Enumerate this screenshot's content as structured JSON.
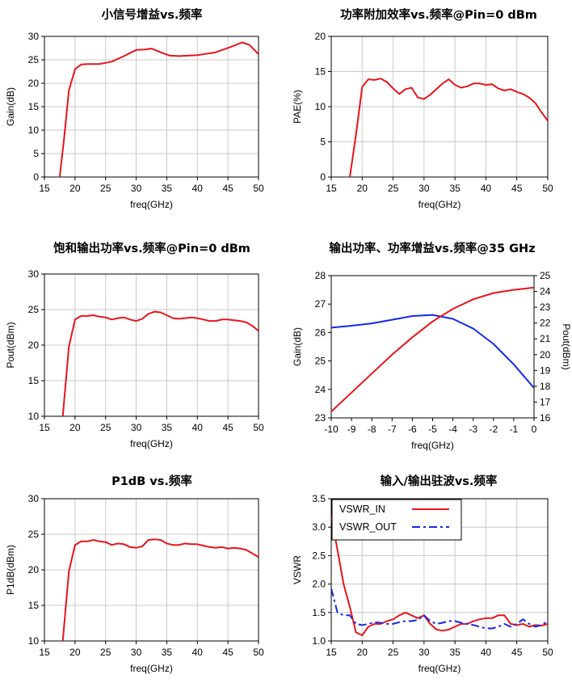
{
  "chart_data": [
    {
      "type": "line",
      "title": "小信号增益vs.频率",
      "xlabel": "freq(GHz)",
      "ylabel": "Gain(dB)",
      "xlim": [
        15,
        50
      ],
      "ylim": [
        0,
        30
      ],
      "xticks": [
        15,
        20,
        25,
        30,
        35,
        40,
        45,
        50
      ],
      "yticks": [
        0,
        5,
        10,
        15,
        20,
        25,
        30
      ],
      "grid": true,
      "series": [
        {
          "color": "#e8141c",
          "x": [
            17.5,
            18.2,
            19,
            20,
            21,
            22,
            24,
            26,
            28,
            30,
            31.5,
            32.5,
            34,
            35.5,
            37,
            40,
            43,
            46,
            47.3,
            48.5,
            50
          ],
          "y": [
            0,
            8,
            18.5,
            23,
            24,
            24.1,
            24.1,
            24.6,
            25.8,
            27.1,
            27.2,
            27.4,
            26.6,
            25.9,
            25.8,
            26,
            26.6,
            28,
            28.7,
            28.2,
            26.2
          ]
        }
      ]
    },
    {
      "type": "line",
      "title": "功率附加效率vs.频率@Pin=0 dBm",
      "xlabel": "freq(GHz)",
      "ylabel": "PAE(%)",
      "xlim": [
        15,
        50
      ],
      "ylim": [
        0,
        20
      ],
      "xticks": [
        15,
        20,
        25,
        30,
        35,
        40,
        45,
        50
      ],
      "yticks": [
        0,
        5,
        10,
        15,
        20
      ],
      "grid": true,
      "series": [
        {
          "color": "#e8141c",
          "x": [
            18,
            19,
            20,
            21,
            22,
            23,
            24,
            25,
            26,
            27,
            28,
            29,
            30,
            31,
            32,
            33,
            34,
            35,
            36,
            37,
            38,
            39,
            40,
            41,
            42,
            43,
            44,
            45,
            46,
            47,
            48,
            49,
            50
          ],
          "y": [
            0,
            6,
            12.8,
            13.9,
            13.8,
            14,
            13.5,
            12.6,
            11.8,
            12.5,
            12.7,
            11.3,
            11.1,
            11.7,
            12.5,
            13.3,
            13.9,
            13.1,
            12.7,
            12.9,
            13.3,
            13.3,
            13.1,
            13.2,
            12.6,
            12.3,
            12.5,
            12.1,
            11.8,
            11.3,
            10.5,
            9.2,
            8
          ]
        }
      ]
    },
    {
      "type": "line",
      "title": "饱和输出功率vs.频率@Pin=0 dBm",
      "xlabel": "freq(GHz)",
      "ylabel": "Pout(dBm)",
      "xlim": [
        15,
        50
      ],
      "ylim": [
        10,
        30
      ],
      "xticks": [
        15,
        20,
        25,
        30,
        35,
        40,
        45,
        50
      ],
      "yticks": [
        10,
        15,
        20,
        25,
        30
      ],
      "grid": true,
      "series": [
        {
          "color": "#e8141c",
          "x": [
            18,
            19,
            20,
            21,
            22,
            23,
            24,
            25,
            26,
            27,
            28,
            29,
            30,
            31,
            32,
            33,
            34,
            35,
            36,
            37,
            38,
            39,
            40,
            41,
            42,
            43,
            44,
            45,
            46,
            47,
            48,
            49,
            50
          ],
          "y": [
            10,
            19.8,
            23.6,
            24.1,
            24.1,
            24.2,
            24,
            23.9,
            23.6,
            23.8,
            23.9,
            23.6,
            23.4,
            23.7,
            24.4,
            24.7,
            24.6,
            24.2,
            23.8,
            23.7,
            23.8,
            23.9,
            23.8,
            23.6,
            23.4,
            23.4,
            23.6,
            23.6,
            23.5,
            23.4,
            23.2,
            22.7,
            22
          ]
        }
      ]
    },
    {
      "type": "line",
      "title": "输出功率、功率增益vs.频率@35 GHz",
      "xlabel": "freq(GHz)",
      "ylabel": "Gain(dB)",
      "y2label": "Pout(dBm)",
      "xlim": [
        -10,
        0
      ],
      "ylim": [
        23,
        28
      ],
      "y2lim": [
        16,
        25
      ],
      "xticks": [
        -10,
        -9,
        -8,
        -7,
        -6,
        -5,
        -4,
        -3,
        -2,
        -1,
        0
      ],
      "yticks": [
        23,
        24,
        25,
        26,
        27,
        28
      ],
      "y2ticks": [
        16,
        17,
        18,
        19,
        20,
        21,
        22,
        23,
        24,
        25
      ],
      "grid": false,
      "series": [
        {
          "color": "#1428e6",
          "axis": "left",
          "x": [
            -10,
            -9,
            -8,
            -7,
            -6,
            -5,
            -4,
            -3,
            -2,
            -1,
            0
          ],
          "y": [
            26.17,
            26.24,
            26.32,
            26.45,
            26.58,
            26.62,
            26.48,
            26.14,
            25.6,
            24.88,
            24.05
          ]
        },
        {
          "color": "#e8141c",
          "axis": "right",
          "x": [
            -10,
            -9,
            -8,
            -7,
            -6,
            -5,
            -4,
            -3,
            -2,
            -1,
            0
          ],
          "y": [
            16.4,
            17.6,
            18.8,
            20.0,
            21.1,
            22.1,
            22.9,
            23.5,
            23.9,
            24.1,
            24.25
          ]
        }
      ]
    },
    {
      "type": "line",
      "title": "P1dB vs.频率",
      "xlabel": "freq(GHz)",
      "ylabel": "P1dB(dBm)",
      "xlim": [
        15,
        50
      ],
      "ylim": [
        10,
        30
      ],
      "xticks": [
        15,
        20,
        25,
        30,
        35,
        40,
        45,
        50
      ],
      "yticks": [
        10,
        15,
        20,
        25,
        30
      ],
      "grid": true,
      "series": [
        {
          "color": "#e8141c",
          "x": [
            18,
            19,
            20,
            21,
            22,
            23,
            24,
            25,
            26,
            27,
            28,
            29,
            30,
            31,
            32,
            33,
            34,
            35,
            36,
            37,
            38,
            39,
            40,
            41,
            42,
            43,
            44,
            45,
            46,
            47,
            48,
            49,
            50
          ],
          "y": [
            10,
            19.8,
            23.5,
            24,
            24,
            24.2,
            24,
            23.9,
            23.5,
            23.7,
            23.6,
            23.2,
            23.1,
            23.3,
            24.2,
            24.3,
            24.2,
            23.7,
            23.5,
            23.5,
            23.7,
            23.6,
            23.6,
            23.4,
            23.2,
            23.1,
            23.2,
            23,
            23.1,
            23,
            22.8,
            22.3,
            21.8
          ]
        }
      ]
    },
    {
      "type": "line",
      "title": "输入/输出驻波vs.频率",
      "xlabel": "freq(GHz)",
      "ylabel": "VSWR",
      "xlim": [
        15,
        50
      ],
      "ylim": [
        1.0,
        3.5
      ],
      "xticks": [
        15,
        20,
        25,
        30,
        35,
        40,
        45,
        50
      ],
      "yticks": [
        "1.0",
        "1.5",
        "2.0",
        "2.5",
        "3.0",
        "3.5"
      ],
      "grid": true,
      "legend": "top-left",
      "series": [
        {
          "name": "VSWR_IN",
          "color": "#e8141c",
          "dash": "solid",
          "x": [
            15,
            16,
            17,
            18,
            19,
            20,
            21,
            22,
            23,
            24,
            25,
            26,
            27,
            28,
            29,
            30,
            31,
            32,
            33,
            34,
            35,
            36,
            37,
            38,
            39,
            40,
            41,
            42,
            43,
            44,
            45,
            46,
            47,
            48,
            49,
            50
          ],
          "y": [
            3.2,
            2.6,
            2.0,
            1.6,
            1.15,
            1.1,
            1.25,
            1.3,
            1.3,
            1.35,
            1.38,
            1.45,
            1.5,
            1.45,
            1.4,
            1.45,
            1.3,
            1.2,
            1.18,
            1.2,
            1.25,
            1.3,
            1.3,
            1.35,
            1.38,
            1.4,
            1.4,
            1.45,
            1.45,
            1.3,
            1.28,
            1.3,
            1.25,
            1.28,
            1.27,
            1.3
          ]
        },
        {
          "name": "VSWR_OUT",
          "color": "#1428e6",
          "dash": "dash",
          "x": [
            15,
            16,
            17,
            18,
            19,
            20,
            21,
            22,
            23,
            24,
            25,
            26,
            27,
            28,
            29,
            30,
            31,
            32,
            33,
            34,
            35,
            36,
            37,
            38,
            39,
            40,
            41,
            42,
            43,
            44,
            45,
            46,
            47,
            48,
            49,
            50
          ],
          "y": [
            1.92,
            1.5,
            1.45,
            1.45,
            1.3,
            1.28,
            1.3,
            1.33,
            1.32,
            1.3,
            1.3,
            1.33,
            1.35,
            1.35,
            1.37,
            1.45,
            1.35,
            1.3,
            1.32,
            1.35,
            1.35,
            1.32,
            1.3,
            1.28,
            1.25,
            1.22,
            1.22,
            1.25,
            1.3,
            1.25,
            1.3,
            1.38,
            1.3,
            1.25,
            1.28,
            1.35
          ]
        }
      ]
    }
  ]
}
